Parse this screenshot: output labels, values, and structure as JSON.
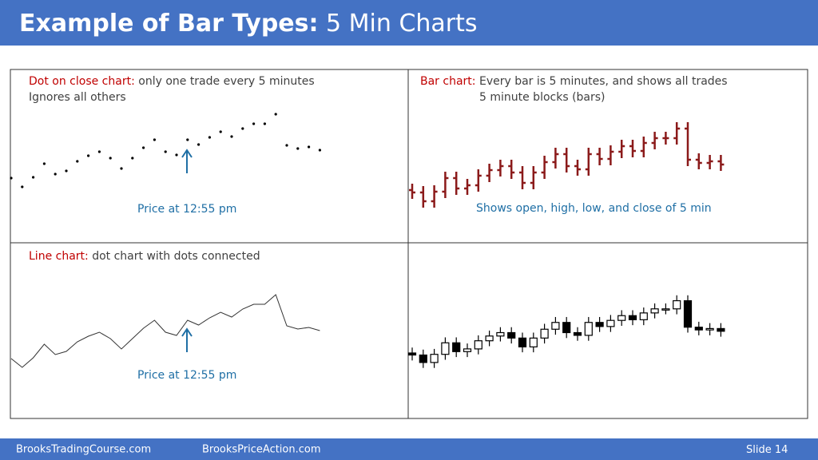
{
  "header": {
    "title_bold": "Example of Bar Types:",
    "title_rest": "5 Min Charts"
  },
  "panels": {
    "dot": {
      "label_red": "Dot on close chart:",
      "label_text": "only one trade every 5 minutes",
      "label_line2": "Ignores all others",
      "annotation": "Price at 12:55 pm"
    },
    "bar": {
      "label_red": "Bar chart:",
      "label_text": "Every bar is 5 minutes, and shows all trades",
      "label_line2": "5 minute blocks (bars)",
      "annotation": "Shows open, high, low, and close of 5 min"
    },
    "line": {
      "label_red": "Line chart:",
      "label_text": "dot chart with dots connected",
      "annotation": "Price at 12:55 pm"
    }
  },
  "prices": {
    "open": [
      80,
      77,
      66,
      78,
      95,
      82,
      86,
      98,
      105,
      110,
      102,
      89,
      102,
      115,
      125,
      110,
      106,
      125,
      119,
      128,
      135,
      129,
      139,
      145,
      145,
      157,
      118,
      114,
      116
    ],
    "high": [
      88,
      85,
      86,
      103,
      103,
      94,
      106,
      113,
      118,
      118,
      110,
      110,
      123,
      133,
      133,
      118,
      133,
      133,
      136,
      143,
      143,
      147,
      153,
      153,
      165,
      165,
      126,
      124,
      124
    ],
    "low": [
      69,
      58,
      58,
      70,
      74,
      74,
      78,
      90,
      97,
      94,
      81,
      81,
      94,
      107,
      102,
      98,
      98,
      111,
      111,
      120,
      121,
      121,
      131,
      137,
      137,
      110,
      106,
      106,
      104
    ],
    "close": [
      77,
      66,
      78,
      95,
      82,
      86,
      98,
      105,
      110,
      102,
      89,
      102,
      115,
      125,
      110,
      106,
      125,
      119,
      128,
      135,
      129,
      139,
      145,
      145,
      157,
      118,
      114,
      116,
      112
    ]
  },
  "footer": {
    "left": "BrooksTradingCourse.com",
    "middle": "BrooksPriceAction.com",
    "slide_label": "Slide",
    "slide_number": 14
  }
}
